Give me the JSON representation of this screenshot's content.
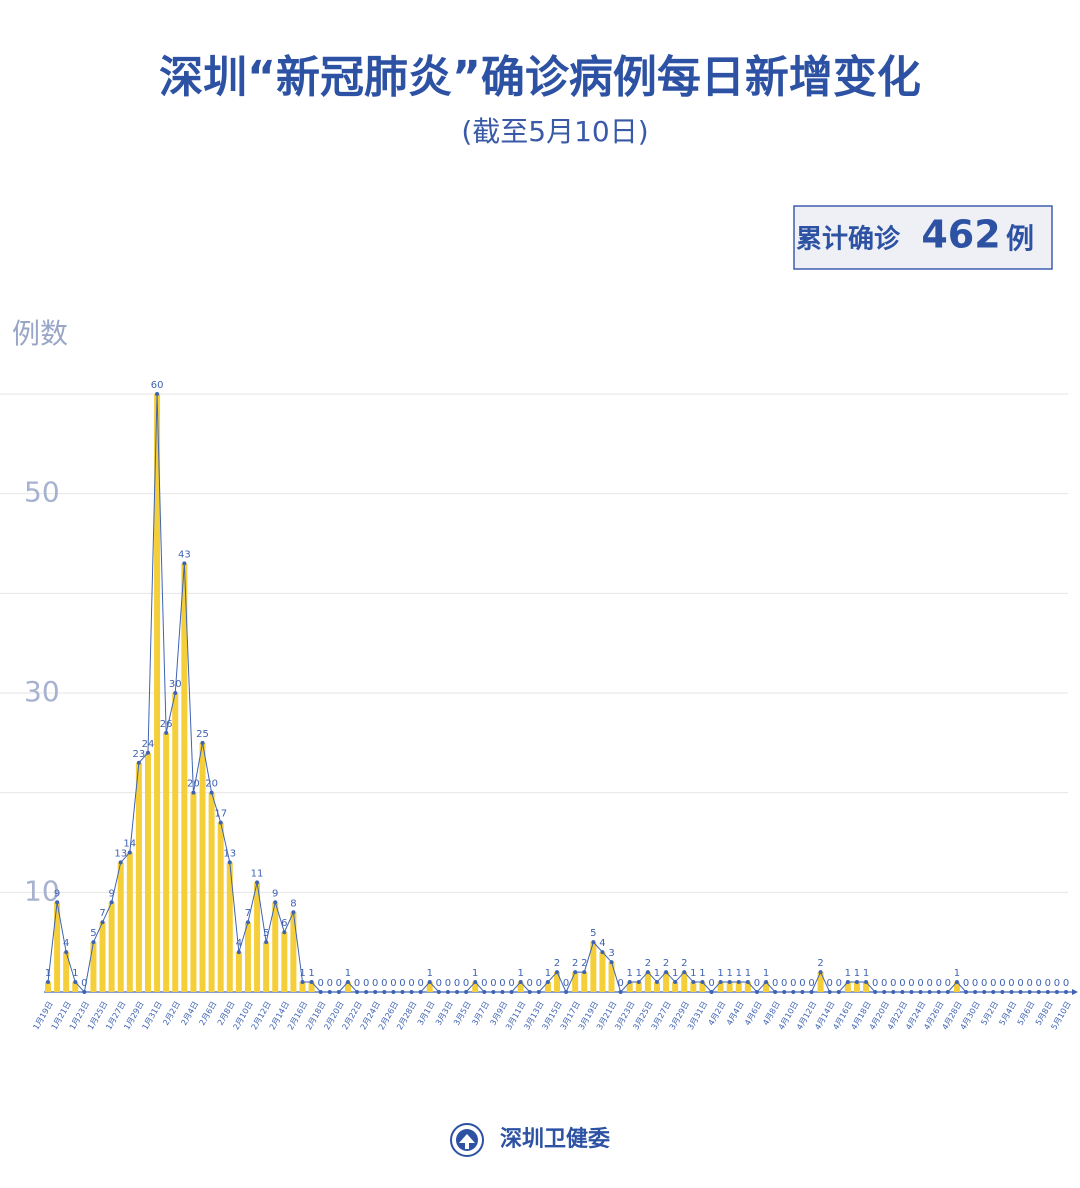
{
  "chart_data": {
    "type": "bar-line",
    "title": "深圳“新冠肺炎”确诊病例每日新增变化",
    "subtitle": "(截至5月10日)",
    "ylabel": "例数",
    "annotation": {
      "label": "累计确诊",
      "value": 462,
      "unit": "例"
    },
    "categories": [
      "1月19日",
      null,
      "1月21日",
      null,
      "1月23日",
      null,
      "1月25日",
      null,
      "1月27日",
      null,
      "1月29日",
      null,
      "1月31日",
      null,
      "2月2日",
      null,
      "2月4日",
      null,
      "2月6日",
      null,
      "2月8日",
      null,
      "2月10日",
      null,
      "2月12日",
      null,
      "2月14日",
      null,
      "2月16日",
      null,
      "2月18日",
      null,
      "2月20日",
      null,
      "2月22日",
      null,
      "2月24日",
      null,
      "2月26日",
      null,
      "2月28日",
      null,
      "3月1日",
      null,
      "3月3日",
      null,
      "3月5日",
      null,
      "3月7日",
      null,
      "3月9日",
      null,
      "3月11日",
      null,
      "3月13日",
      null,
      "3月15日",
      null,
      "3月17日",
      null,
      "3月19日",
      null,
      "3月21日",
      null,
      "3月23日",
      null,
      "3月25日",
      null,
      "3月27日",
      null,
      "3月29日",
      null,
      "3月31日",
      null,
      "4月2日",
      null,
      "4月4日",
      null,
      "4月6日",
      null,
      "4月8日",
      null,
      "4月10日",
      null,
      "4月12日",
      null,
      "4月14日",
      null,
      "4月16日",
      null,
      "4月18日",
      null,
      "4月20日",
      null,
      "4月22日",
      null,
      "4月24日",
      null,
      "4月26日",
      null,
      "4月28日",
      null,
      "4月30日",
      null,
      "5月2日",
      null,
      "5月4日",
      null,
      "5月6日",
      null,
      "5月8日",
      null,
      "5月10日"
    ],
    "values": [
      1,
      9,
      4,
      1,
      0,
      5,
      7,
      9,
      13,
      14,
      23,
      24,
      60,
      26,
      30,
      43,
      20,
      25,
      20,
      17,
      13,
      4,
      7,
      11,
      5,
      9,
      6,
      8,
      1,
      1,
      0,
      0,
      0,
      1,
      0,
      0,
      0,
      0,
      0,
      0,
      0,
      0,
      1,
      0,
      0,
      0,
      0,
      1,
      0,
      0,
      0,
      0,
      1,
      0,
      0,
      1,
      2,
      0,
      2,
      2,
      5,
      4,
      3,
      0,
      1,
      1,
      2,
      1,
      2,
      1,
      2,
      1,
      1,
      0,
      1,
      1,
      1,
      1,
      0,
      1,
      0,
      0,
      0,
      0,
      0,
      2,
      0,
      0,
      1,
      1,
      1,
      0,
      0,
      0,
      0,
      0,
      0,
      0,
      0,
      0,
      1,
      0,
      0,
      0,
      0,
      0,
      0,
      0,
      0,
      0,
      0,
      0,
      0
    ],
    "color": "#f5cf3a",
    "line_color": "#3f63b3",
    "ylim": [
      0,
      60
    ],
    "yticks": [
      10,
      30,
      50
    ],
    "grid": true
  },
  "footer": {
    "source": "深圳卫健委"
  }
}
